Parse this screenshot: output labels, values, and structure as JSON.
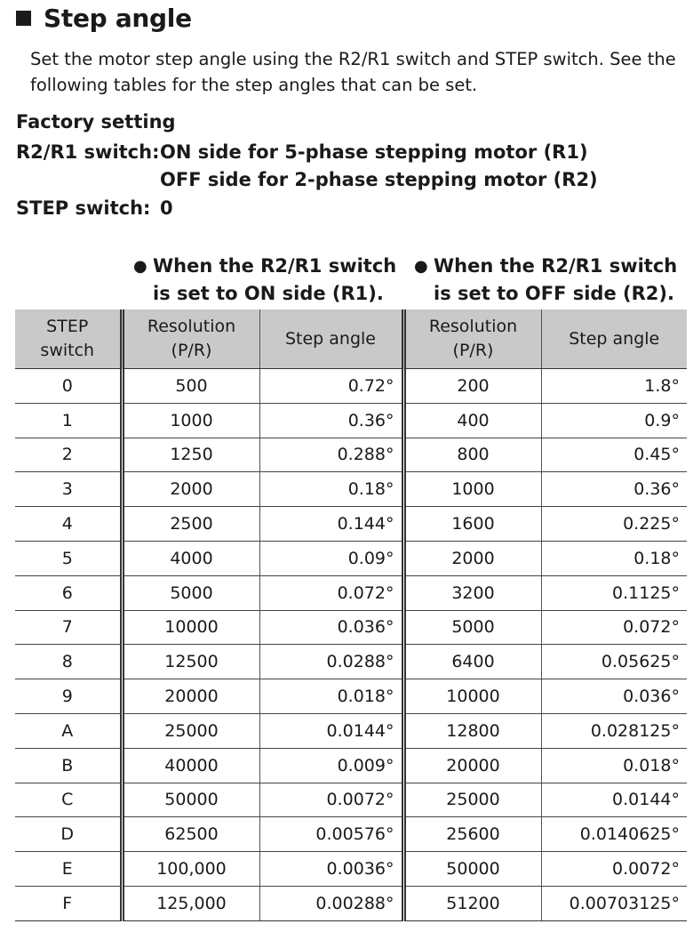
{
  "section": {
    "title": "Step angle",
    "description": "Set the motor step angle using the R2/R1 switch and STEP switch. See the following tables for the step angles that can be set."
  },
  "factory": {
    "heading": "Factory setting",
    "r2r1_key": "R2/R1 switch:",
    "r2r1_on": "ON side for 5-phase stepping motor (R1)",
    "r2r1_off": "OFF side for 2-phase stepping motor (R2)",
    "step_key": "STEP switch:",
    "step_val": "0"
  },
  "notes": {
    "on_line1": "When the R2/R1 switch",
    "on_line2": "is set to ON side (R1).",
    "off_line1": "When the R2/R1 switch",
    "off_line2": "is set to OFF side (R2)."
  },
  "table": {
    "headers": {
      "step_l1": "STEP",
      "step_l2": "switch",
      "res_on_l1": "Resolution",
      "res_on_l2": "(P/R)",
      "angle_on": "Step angle",
      "res_off_l1": "Resolution",
      "res_off_l2": "(P/R)",
      "angle_off": "Step angle"
    },
    "rows": [
      [
        "0",
        "500",
        "0.72°",
        "200",
        "1.8°"
      ],
      [
        "1",
        "1000",
        "0.36°",
        "400",
        "0.9°"
      ],
      [
        "2",
        "1250",
        "0.288°",
        "800",
        "0.45°"
      ],
      [
        "3",
        "2000",
        "0.18°",
        "1000",
        "0.36°"
      ],
      [
        "4",
        "2500",
        "0.144°",
        "1600",
        "0.225°"
      ],
      [
        "5",
        "4000",
        "0.09°",
        "2000",
        "0.18°"
      ],
      [
        "6",
        "5000",
        "0.072°",
        "3200",
        "0.1125°"
      ],
      [
        "7",
        "10000",
        "0.036°",
        "5000",
        "0.072°"
      ],
      [
        "8",
        "12500",
        "0.0288°",
        "6400",
        "0.05625°"
      ],
      [
        "9",
        "20000",
        "0.018°",
        "10000",
        "0.036°"
      ],
      [
        "A",
        "25000",
        "0.0144°",
        "12800",
        "0.028125°"
      ],
      [
        "B",
        "40000",
        "0.009°",
        "20000",
        "0.018°"
      ],
      [
        "C",
        "50000",
        "0.0072°",
        "25000",
        "0.0144°"
      ],
      [
        "D",
        "62500",
        "0.00576°",
        "25600",
        "0.0140625°"
      ],
      [
        "E",
        "100,000",
        "0.0036°",
        "50000",
        "0.0072°"
      ],
      [
        "F",
        "125,000",
        "0.00288°",
        "51200",
        "0.00703125°"
      ]
    ]
  }
}
